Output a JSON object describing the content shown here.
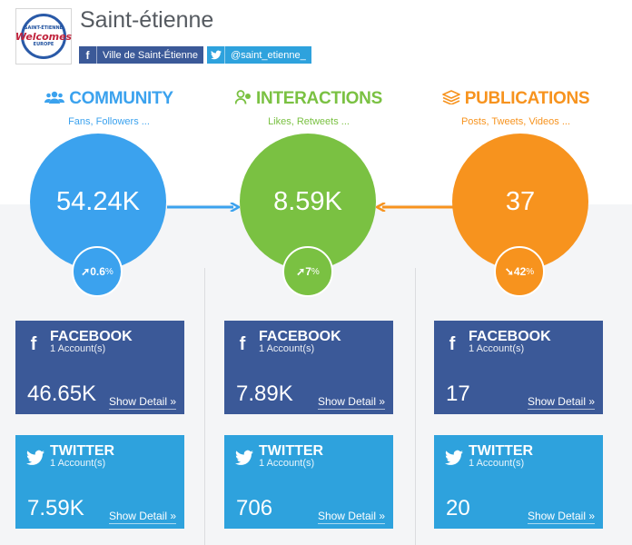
{
  "header": {
    "title": "Saint-étienne",
    "logo_text": {
      "top": "SAINT-ÉTIENNE",
      "middle": "Welcomes",
      "bottom": "EUROPE"
    },
    "facebook_link": {
      "icon": "facebook-icon",
      "label": "Ville de Saint-Étienne"
    },
    "twitter_link": {
      "icon": "twitter-icon",
      "label": "@saint_etienne_"
    }
  },
  "colors": {
    "community": "#3ba2ee",
    "interactions": "#7ac142",
    "publications": "#f7931e",
    "facebook": "#3b5998",
    "twitter": "#2ea2dd"
  },
  "columns": [
    {
      "id": "community",
      "icon": "users-icon",
      "title": "COMMUNITY",
      "subtitle": "Fans, Followers ...",
      "total": "54.24K",
      "trend_direction": "up",
      "trend_value": "0.6",
      "trend_unit": "%",
      "facebook": {
        "name": "FACEBOOK",
        "accounts": "1 Account(s)",
        "value": "46.65K",
        "detail": "Show Detail »"
      },
      "twitter": {
        "name": "TWITTER",
        "accounts": "1 Account(s)",
        "value": "7.59K",
        "detail": "Show Detail »"
      }
    },
    {
      "id": "interactions",
      "icon": "user-interaction-icon",
      "title": "INTERACTIONS",
      "subtitle": "Likes, Retweets ...",
      "total": "8.59K",
      "trend_direction": "up",
      "trend_value": "7",
      "trend_unit": "%",
      "facebook": {
        "name": "FACEBOOK",
        "accounts": "1 Account(s)",
        "value": "7.89K",
        "detail": "Show Detail »"
      },
      "twitter": {
        "name": "TWITTER",
        "accounts": "1 Account(s)",
        "value": "706",
        "detail": "Show Detail »"
      }
    },
    {
      "id": "publications",
      "icon": "stack-icon",
      "title": "PUBLICATIONS",
      "subtitle": "Posts, Tweets, Videos ...",
      "total": "37",
      "trend_direction": "down",
      "trend_value": "42",
      "trend_unit": "%",
      "facebook": {
        "name": "FACEBOOK",
        "accounts": "1 Account(s)",
        "value": "17",
        "detail": "Show Detail »"
      },
      "twitter": {
        "name": "TWITTER",
        "accounts": "1 Account(s)",
        "value": "20",
        "detail": "Show Detail »"
      }
    }
  ]
}
